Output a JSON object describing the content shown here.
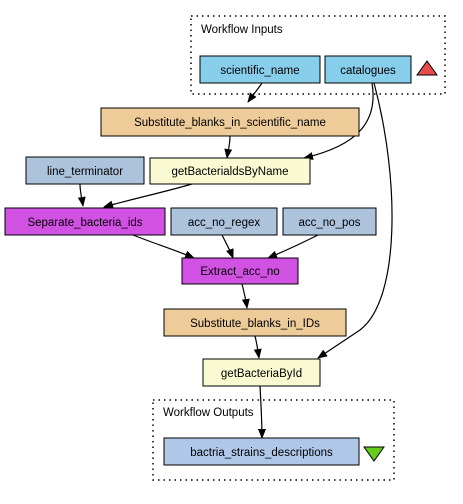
{
  "clusters": {
    "inputs": {
      "label": "Workflow Inputs"
    },
    "outputs": {
      "label": "Workflow Outputs"
    }
  },
  "nodes": {
    "scientific_name": {
      "label": "scientific_name",
      "fill": "#87ceeb"
    },
    "catalogues": {
      "label": "catalogues",
      "fill": "#87ceeb"
    },
    "subst_sci": {
      "label": "Substitute_blanks_in_scientific_name",
      "fill": "#eecc99"
    },
    "line_terminator": {
      "label": "line_terminator",
      "fill": "#adc2db"
    },
    "get_by_name": {
      "label": "getBacterialdsByName",
      "fill": "#fafad2"
    },
    "separate": {
      "label": "Separate_bacteria_ids",
      "fill": "#d151e3"
    },
    "acc_no_regex": {
      "label": "acc_no_regex",
      "fill": "#adc2db"
    },
    "acc_no_pos": {
      "label": "acc_no_pos",
      "fill": "#adc2db"
    },
    "extract": {
      "label": "Extract_acc_no",
      "fill": "#d151e3"
    },
    "subst_ids": {
      "label": "Substitute_blanks_in_IDs",
      "fill": "#eecc99"
    },
    "get_by_id": {
      "label": "getBacteriaById",
      "fill": "#fafad2"
    },
    "output": {
      "label": "bactria_strains_descriptions",
      "fill": "#b0c8e8"
    }
  },
  "markers": {
    "inputs_triangle": {
      "icon": "red-up-triangle",
      "color": "#e64c4c"
    },
    "outputs_triangle": {
      "icon": "green-down-triangle",
      "color": "#66cc1a"
    }
  },
  "edges": [
    [
      "scientific_name",
      "subst_sci"
    ],
    [
      "catalogues",
      "get_by_name"
    ],
    [
      "catalogues",
      "get_by_id"
    ],
    [
      "subst_sci",
      "get_by_name"
    ],
    [
      "get_by_name",
      "separate"
    ],
    [
      "line_terminator",
      "separate"
    ],
    [
      "separate",
      "extract"
    ],
    [
      "acc_no_regex",
      "extract"
    ],
    [
      "acc_no_pos",
      "extract"
    ],
    [
      "extract",
      "subst_ids"
    ],
    [
      "subst_ids",
      "get_by_id"
    ],
    [
      "get_by_id",
      "output"
    ]
  ]
}
